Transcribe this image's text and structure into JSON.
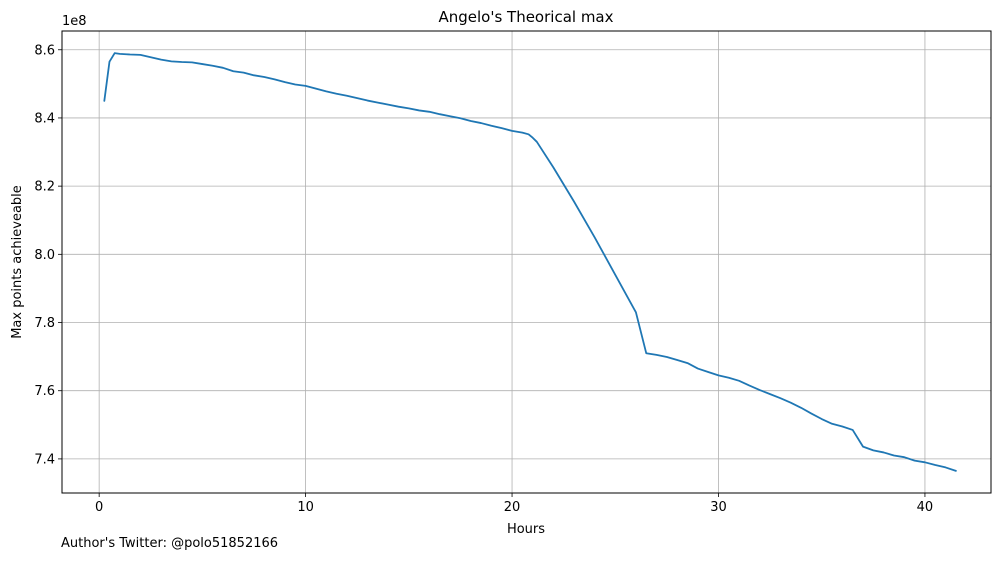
{
  "chart_data": {
    "type": "line",
    "title": "Angelo's Theorical max",
    "xlabel": "Hours",
    "ylabel": "Max points achieveable",
    "y_offset_label": "1e8",
    "y_multiplier": 100000000,
    "xlim": [
      -1.8,
      43.2
    ],
    "ylim": [
      7.3,
      8.655
    ],
    "x_ticks": [
      0,
      10,
      20,
      30,
      40
    ],
    "x_tick_labels": [
      "0",
      "10",
      "20",
      "30",
      "40"
    ],
    "y_ticks": [
      7.4,
      7.6,
      7.8,
      8.0,
      8.2,
      8.4,
      8.6
    ],
    "y_tick_labels": [
      "7.4",
      "7.6",
      "7.8",
      "8.0",
      "8.2",
      "8.4",
      "8.6"
    ],
    "grid": true,
    "legend": "none",
    "series": [
      {
        "color": "#1f77b4",
        "x": [
          0.25,
          0.5,
          0.75,
          1.0,
          1.5,
          2.0,
          2.5,
          3.0,
          3.5,
          4.0,
          4.5,
          5.0,
          5.5,
          6.0,
          6.5,
          7.0,
          7.5,
          8.0,
          8.5,
          9.0,
          9.5,
          10.0,
          10.5,
          11.0,
          11.5,
          12.0,
          12.5,
          13.0,
          13.5,
          14.0,
          14.5,
          15.0,
          15.5,
          16.0,
          16.5,
          17.0,
          17.5,
          18.0,
          18.5,
          19.0,
          19.5,
          20.0,
          20.5,
          20.8,
          21.0,
          21.2,
          22.0,
          23.0,
          24.0,
          25.0,
          26.0,
          26.5,
          27.0,
          27.5,
          28.0,
          28.5,
          29.0,
          29.5,
          30.0,
          30.5,
          31.0,
          31.5,
          32.0,
          32.5,
          33.0,
          33.5,
          34.0,
          34.5,
          35.0,
          35.5,
          36.0,
          36.5,
          37.0,
          37.5,
          38.0,
          38.5,
          39.0,
          39.5,
          40.0,
          40.5,
          41.0,
          41.5
        ],
        "y": [
          8.45,
          8.565,
          8.59,
          8.588,
          8.586,
          8.585,
          8.578,
          8.571,
          8.566,
          8.564,
          8.563,
          8.558,
          8.553,
          8.547,
          8.537,
          8.533,
          8.525,
          8.52,
          8.513,
          8.505,
          8.498,
          8.494,
          8.486,
          8.478,
          8.471,
          8.465,
          8.458,
          8.451,
          8.445,
          8.439,
          8.433,
          8.428,
          8.422,
          8.418,
          8.411,
          8.405,
          8.399,
          8.391,
          8.385,
          8.377,
          8.37,
          8.362,
          8.357,
          8.352,
          8.342,
          8.33,
          8.255,
          8.155,
          8.05,
          7.94,
          7.83,
          7.71,
          7.705,
          7.699,
          7.69,
          7.681,
          7.665,
          7.655,
          7.645,
          7.638,
          7.629,
          7.615,
          7.602,
          7.59,
          7.578,
          7.565,
          7.55,
          7.533,
          7.517,
          7.503,
          7.495,
          7.485,
          7.436,
          7.425,
          7.419,
          7.41,
          7.405,
          7.395,
          7.39,
          7.382,
          7.375,
          7.365
        ]
      }
    ]
  },
  "footer": {
    "note": "Author's Twitter: @polo51852166"
  }
}
